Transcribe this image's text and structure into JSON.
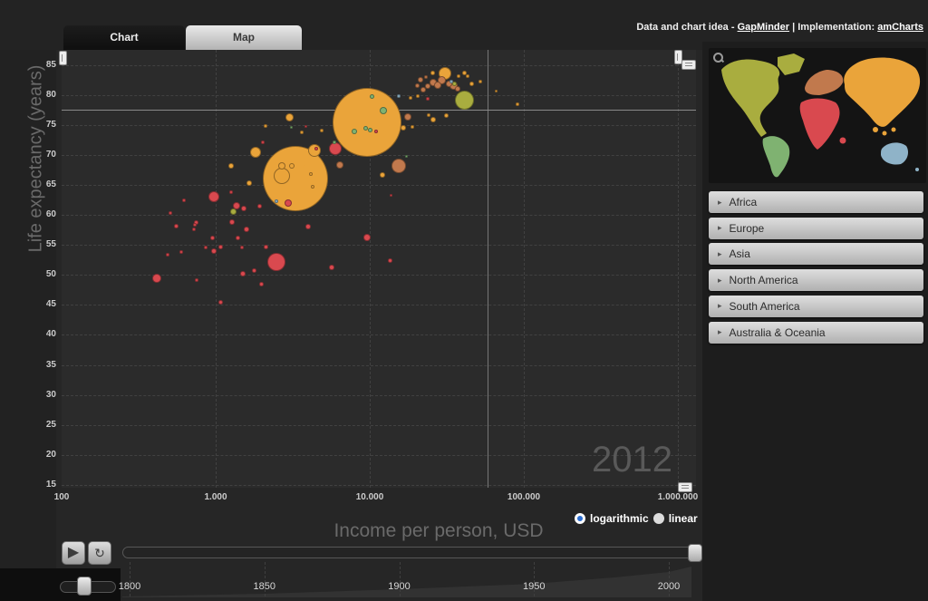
{
  "header": {
    "credit_prefix": "Data and chart idea - ",
    "credit_link1": "GapMinder",
    "credit_sep": " | Implementation: ",
    "credit_link2": "amCharts"
  },
  "tabs": [
    {
      "label": "Chart",
      "active": true
    },
    {
      "label": "Map",
      "active": false
    }
  ],
  "chart_data": {
    "type": "scatter",
    "xlabel": "Income per person, USD",
    "ylabel": "Life expectancy (years)",
    "x_scale": "log",
    "x_ticks": [
      {
        "value": 100,
        "label": "100"
      },
      {
        "value": 1000,
        "label": "1.000"
      },
      {
        "value": 10000,
        "label": "10.000"
      },
      {
        "value": 100000,
        "label": "100.000"
      },
      {
        "value": 1000000,
        "label": "1.000.000"
      }
    ],
    "y_ticks": [
      85,
      80,
      75,
      70,
      65,
      60,
      55,
      50,
      45,
      40,
      35,
      30,
      25,
      20,
      15
    ],
    "y_range": [
      15,
      85
    ],
    "year": "2012",
    "reference_lines": {
      "life_expectancy": 77.5,
      "income": 58000
    },
    "bubbles": [
      [
        9600,
        75.4,
        38,
        "asia"
      ],
      [
        3290,
        66.1,
        36,
        "asia"
      ],
      [
        41400,
        79.1,
        10.5,
        "north_america"
      ],
      [
        30800,
        83.6,
        7,
        "asia"
      ],
      [
        15400,
        68.2,
        8,
        "europe"
      ],
      [
        25800,
        82.1,
        4,
        "europe"
      ],
      [
        27600,
        81.6,
        4,
        "europe"
      ],
      [
        29200,
        82.4,
        4.5,
        "europe"
      ],
      [
        32500,
        81.9,
        3.5,
        "europe"
      ],
      [
        35200,
        81.5,
        4.5,
        "europe"
      ],
      [
        37200,
        81.0,
        3,
        "europe"
      ],
      [
        23800,
        81.5,
        3,
        "europe"
      ],
      [
        22200,
        80.9,
        3,
        "europe"
      ],
      [
        20500,
        81.6,
        2.5,
        "europe"
      ],
      [
        33800,
        82.2,
        2,
        "oceania"
      ],
      [
        35700,
        81.9,
        2.5,
        "north_america"
      ],
      [
        41400,
        83.6,
        2.5,
        "asia"
      ],
      [
        46200,
        81.9,
        2.5,
        "asia"
      ],
      [
        52200,
        82.2,
        2,
        "asia"
      ],
      [
        43200,
        83.1,
        2,
        "asia"
      ],
      [
        66600,
        80.7,
        1.5,
        "asia"
      ],
      [
        91000,
        78.5,
        2,
        "asia"
      ],
      [
        37700,
        83.1,
        2,
        "asia"
      ],
      [
        25500,
        83.7,
        2.5,
        "asia"
      ],
      [
        23200,
        83.0,
        2,
        "europe"
      ],
      [
        21300,
        82.5,
        3,
        "europe"
      ],
      [
        20500,
        79.8,
        2,
        "asia"
      ],
      [
        18400,
        79.5,
        2,
        "asia"
      ],
      [
        15400,
        79.8,
        2,
        "oceania"
      ],
      [
        17200,
        69.8,
        1.5,
        "south_america"
      ],
      [
        17700,
        76.3,
        4,
        "europe"
      ],
      [
        31200,
        76.6,
        2.5,
        "asia"
      ],
      [
        25800,
        75.9,
        3,
        "asia"
      ],
      [
        24100,
        76.6,
        2,
        "asia"
      ],
      [
        13800,
        63.2,
        1.5,
        "africa"
      ],
      [
        12100,
        66.7,
        3,
        "asia"
      ],
      [
        12200,
        77.4,
        4,
        "south_america"
      ],
      [
        10400,
        79.8,
        2.5,
        "south_america"
      ],
      [
        11000,
        73.9,
        2,
        "africa"
      ],
      [
        10000,
        74.2,
        2.5,
        "south_america"
      ],
      [
        14000,
        75.1,
        4,
        "asia",
        1
      ],
      [
        7940,
        73.9,
        3,
        "south_america"
      ],
      [
        9350,
        74.4,
        2.5,
        "south_america"
      ],
      [
        5970,
        71.1,
        7,
        "africa"
      ],
      [
        6390,
        68.3,
        4,
        "europe"
      ],
      [
        4380,
        70.7,
        7,
        "asia"
      ],
      [
        4500,
        71.1,
        2,
        "africa"
      ],
      [
        3870,
        74.7,
        1.5,
        "africa"
      ],
      [
        4880,
        74.1,
        2,
        "asia"
      ],
      [
        3620,
        73.8,
        2,
        "asia"
      ],
      [
        3080,
        74.6,
        1.5,
        "south_america"
      ],
      [
        3030,
        76.2,
        4.5,
        "asia"
      ],
      [
        5900,
        72.1,
        2,
        "south_america"
      ],
      [
        2110,
        74.8,
        2,
        "asia"
      ],
      [
        2690,
        68.2,
        4,
        "asia"
      ],
      [
        3120,
        68.2,
        3,
        "asia"
      ],
      [
        3620,
        68.6,
        4.5,
        "asia",
        1
      ],
      [
        3380,
        67.0,
        3,
        "asia",
        1
      ],
      [
        2690,
        66.5,
        9,
        "asia"
      ],
      [
        4150,
        66.8,
        2,
        "asia"
      ],
      [
        2960,
        62.0,
        4,
        "africa"
      ],
      [
        2480,
        62.3,
        2,
        "oceania"
      ],
      [
        4260,
        64.7,
        2,
        "asia"
      ],
      [
        1820,
        70.4,
        6,
        "asia"
      ],
      [
        1650,
        65.3,
        3,
        "asia"
      ],
      [
        1260,
        68.2,
        3,
        "asia"
      ],
      [
        1260,
        63.8,
        2,
        "africa"
      ],
      [
        2020,
        72.1,
        2,
        "africa"
      ],
      [
        973,
        63.0,
        6,
        "africa"
      ],
      [
        622,
        62.4,
        2,
        "africa"
      ],
      [
        508,
        60.3,
        2,
        "africa"
      ],
      [
        558,
        58.2,
        2.5,
        "africa"
      ],
      [
        733,
        58.4,
        2,
        "africa"
      ],
      [
        1360,
        61.5,
        4,
        "africa"
      ],
      [
        1520,
        61.1,
        3,
        "africa"
      ],
      [
        1920,
        61.5,
        2.5,
        "africa"
      ],
      [
        1310,
        60.5,
        3.5,
        "north_america"
      ],
      [
        752,
        58.8,
        2.5,
        "africa"
      ],
      [
        722,
        57.6,
        2,
        "africa"
      ],
      [
        960,
        56.1,
        2.5,
        "africa"
      ],
      [
        1280,
        58.8,
        3,
        "africa"
      ],
      [
        1580,
        57.6,
        3,
        "africa"
      ],
      [
        1400,
        56.1,
        2.5,
        "africa"
      ],
      [
        861,
        54.6,
        2,
        "africa"
      ],
      [
        973,
        54.0,
        3,
        "africa"
      ],
      [
        1080,
        54.7,
        2.5,
        "africa"
      ],
      [
        488,
        53.4,
        2,
        "africa"
      ],
      [
        597,
        53.8,
        2,
        "africa"
      ],
      [
        1480,
        54.6,
        2,
        "africa"
      ],
      [
        2130,
        54.6,
        2.5,
        "africa"
      ],
      [
        2480,
        52.2,
        10,
        "africa"
      ],
      [
        1500,
        50.2,
        3,
        "africa"
      ],
      [
        1790,
        50.7,
        2.5,
        "africa"
      ],
      [
        415,
        49.4,
        5,
        "africa"
      ],
      [
        752,
        49.1,
        2,
        "africa"
      ],
      [
        1970,
        48.5,
        2.5,
        "africa"
      ],
      [
        1080,
        45.4,
        2.5,
        "africa"
      ],
      [
        3980,
        58.1,
        3,
        "africa"
      ],
      [
        5660,
        51.3,
        3,
        "africa"
      ],
      [
        9600,
        56.2,
        4,
        "africa"
      ],
      [
        13500,
        52.4,
        2.5,
        "africa"
      ],
      [
        16500,
        74.5,
        3,
        "asia"
      ],
      [
        18900,
        74.7,
        2,
        "asia"
      ],
      [
        12100,
        73.6,
        4,
        "asia",
        1
      ],
      [
        23800,
        79.4,
        2,
        "africa"
      ]
    ]
  },
  "controls": {
    "play_icon": "▶",
    "loop_icon": "↻",
    "scale_options": [
      {
        "label": "logarithmic",
        "selected": true
      },
      {
        "label": "linear",
        "selected": false
      }
    ]
  },
  "timeline": {
    "start": 1800,
    "end": 2012,
    "current": 2012,
    "ticks": [
      "1800",
      "1850",
      "1900",
      "1950",
      "2000"
    ]
  },
  "sidebar": {
    "continents": [
      {
        "label": "Africa",
        "key": "africa"
      },
      {
        "label": "Europe",
        "key": "europe"
      },
      {
        "label": "Asia",
        "key": "asia"
      },
      {
        "label": "North America",
        "key": "north_america"
      },
      {
        "label": "South America",
        "key": "south_america"
      },
      {
        "label": "Australia & Oceania",
        "key": "oceania"
      }
    ]
  },
  "continent_colors": {
    "africa": "#D9494F",
    "europe": "#C1794D",
    "asia": "#EAA43A",
    "north_america": "#A9AD3F",
    "south_america": "#7FB271",
    "oceania": "#8FB3C8"
  }
}
